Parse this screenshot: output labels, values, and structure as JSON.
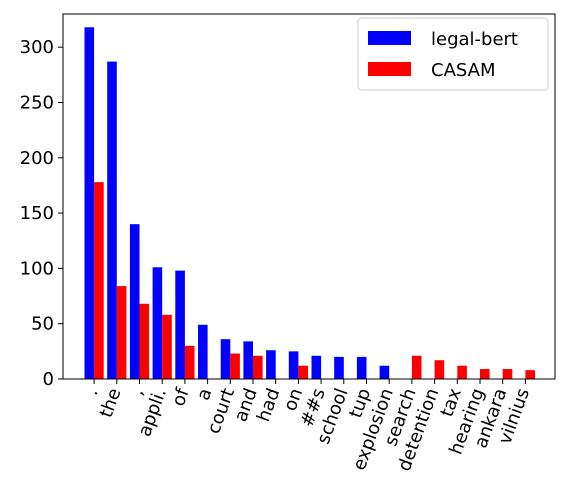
{
  "chart_data": {
    "type": "bar",
    "categories": [
      ".",
      "the",
      ",",
      "appli.",
      "of",
      "a",
      "court",
      "and",
      "had",
      "on",
      "##s",
      "school",
      "tup",
      "explosion",
      "search",
      "detention",
      "tax",
      "hearing",
      "ankara",
      "vilnius"
    ],
    "series": [
      {
        "name": "legal-bert",
        "color": "#0000ff",
        "values": [
          318,
          287,
          140,
          101,
          98,
          49,
          36,
          34,
          26,
          25,
          21,
          20,
          20,
          12,
          null,
          null,
          null,
          null,
          null,
          null
        ]
      },
      {
        "name": "CASAM",
        "color": "#ff0000",
        "values": [
          178,
          84,
          68,
          58,
          30,
          null,
          23,
          21,
          null,
          12,
          null,
          null,
          null,
          null,
          21,
          17,
          12,
          9,
          9,
          8
        ]
      }
    ],
    "ylim": [
      0,
      330
    ],
    "yticks": [
      0,
      50,
      100,
      150,
      200,
      250,
      300
    ],
    "title": "",
    "xlabel": "",
    "ylabel": "",
    "legend": {
      "placement": "top-right",
      "entries": [
        "legal-bert",
        "CASAM"
      ]
    },
    "grid": false
  }
}
